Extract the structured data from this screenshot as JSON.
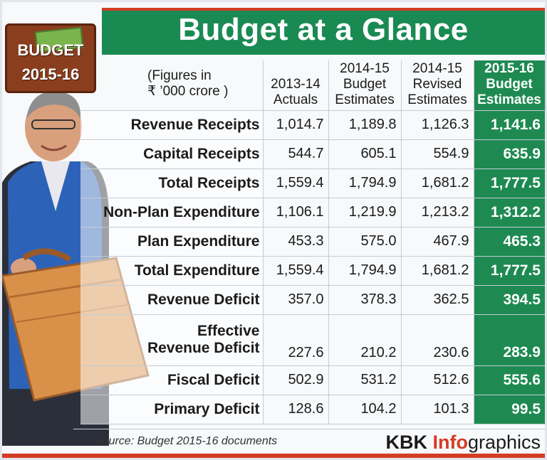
{
  "title": "Budget at a Glance",
  "badge": {
    "line1": "BUDGET",
    "line2": "2015-16"
  },
  "units_line1": "(Figures in",
  "units_line2": "₹ ’000 crore )",
  "columns": [
    {
      "line1": "",
      "line2": "2013-14",
      "line3": "Actuals"
    },
    {
      "line1": "2014-15",
      "line2": "Budget",
      "line3": "Estimates"
    },
    {
      "line1": "2014-15",
      "line2": "Revised",
      "line3": "Estimates"
    },
    {
      "line1": "2015-16",
      "line2": "Budget",
      "line3": "Estimates"
    }
  ],
  "rows": [
    {
      "label": "Revenue Receipts",
      "values": [
        "1,014.7",
        "1,189.8",
        "1,126.3",
        "1,141.6"
      ]
    },
    {
      "label": "Capital Receipts",
      "values": [
        "544.7",
        "605.1",
        "554.9",
        "635.9"
      ]
    },
    {
      "label": "Total Receipts",
      "values": [
        "1,559.4",
        "1,794.9",
        "1,681.2",
        "1,777.5"
      ]
    },
    {
      "label": "Non-Plan Expenditure",
      "values": [
        "1,106.1",
        "1,219.9",
        "1,213.2",
        "1,312.2"
      ]
    },
    {
      "label": "Plan Expenditure",
      "values": [
        "453.3",
        "575.0",
        "467.9",
        "465.3"
      ]
    },
    {
      "label": "Total Expenditure",
      "values": [
        "1,559.4",
        "1,794.9",
        "1,681.2",
        "1,777.5"
      ]
    },
    {
      "label": "Revenue Deficit",
      "values": [
        "357.0",
        "378.3",
        "362.5",
        "394.5"
      ]
    },
    {
      "label_line1": "Effective",
      "label_line2": "Revenue Deficit",
      "values": [
        "227.6",
        "210.2",
        "230.6",
        "283.9"
      ]
    },
    {
      "label": "Fiscal Deficit",
      "values": [
        "502.9",
        "531.2",
        "512.6",
        "555.6"
      ]
    },
    {
      "label": "Primary Deficit",
      "values": [
        "128.6",
        "104.2",
        "101.3",
        "99.5"
      ]
    }
  ],
  "source": "Source: Budget 2015-16 documents",
  "brand": {
    "part1": "KBK ",
    "part2": "Info",
    "part3": "graphics"
  },
  "colors": {
    "header_green": "#1a8a53",
    "accent_red": "#d43c24",
    "highlight_column": "#1e8a52"
  }
}
